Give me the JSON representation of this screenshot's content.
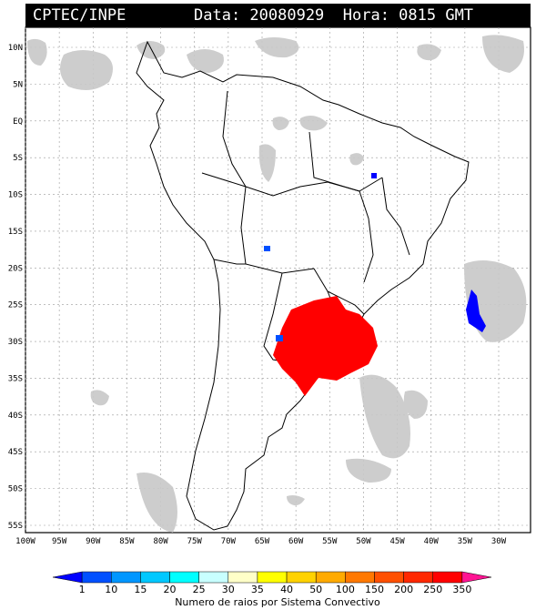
{
  "header": {
    "source": "CPTEC/INPE",
    "datetime": "Data: 20080929  Hora: 0815 GMT"
  },
  "axes": {
    "lat_labels": [
      "10N",
      "5N",
      "EQ",
      "5S",
      "10S",
      "15S",
      "20S",
      "25S",
      "30S",
      "35S",
      "40S",
      "45S",
      "50S",
      "55S"
    ],
    "lon_labels": [
      "100W",
      "95W",
      "90W",
      "85W",
      "80W",
      "75W",
      "70W",
      "65W",
      "60W",
      "55W",
      "50W",
      "45W",
      "40W",
      "35W",
      "30W"
    ]
  },
  "colorbar": {
    "labels": [
      "1",
      "10",
      "15",
      "20",
      "25",
      "30",
      "35",
      "40",
      "50",
      "100",
      "150",
      "200",
      "250",
      "350"
    ],
    "colors": [
      "#0000ff",
      "#0050ff",
      "#0096ff",
      "#00c8ff",
      "#00ffff",
      "#c8ffff",
      "#ffffc8",
      "#ffff00",
      "#ffd200",
      "#ffaa00",
      "#ff7800",
      "#ff5000",
      "#ff2800",
      "#ff0000",
      "#ff1493"
    ],
    "title": "Numero de raios por Sistema Convectivo"
  },
  "colors": {
    "clouds": "#c8c8c8",
    "storm_high": "#ff0000",
    "storm_low": "#0000ff"
  }
}
